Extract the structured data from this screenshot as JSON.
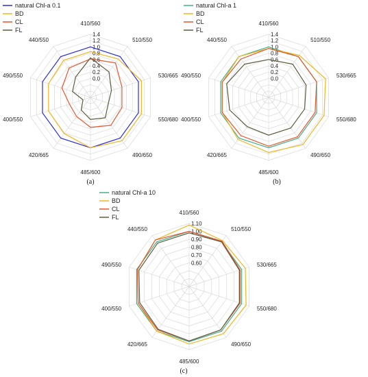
{
  "chart_data": [
    {
      "type": "radar",
      "panel_label": "(a)",
      "categories": [
        "410/560",
        "510/550",
        "530/665",
        "550/680",
        "490/650",
        "485/600",
        "420/665",
        "400/550",
        "490/550",
        "440/550"
      ],
      "ticks": [
        0.0,
        0.2,
        0.4,
        0.6,
        0.8,
        1.0,
        1.2,
        1.4
      ],
      "tick_labels": [
        "0.0",
        "0.2",
        "0.4",
        "0.6",
        "0.8",
        "1.0",
        "1.2",
        "1.4"
      ],
      "rlim": [
        -0.6,
        1.4
      ],
      "grid": true,
      "legend_position": "top-left",
      "series": [
        {
          "name": "natural Chl-a 0.1",
          "color": "#2b2bdb",
          "values": [
            1.0,
            1.0,
            1.0,
            1.0,
            1.0,
            1.0,
            1.0,
            1.0,
            1.0,
            1.0
          ]
        },
        {
          "name": "BD",
          "color": "#f2b51d",
          "values": [
            0.85,
            0.9,
            1.1,
            1.1,
            1.1,
            1.0,
            0.82,
            0.8,
            0.8,
            0.85
          ]
        },
        {
          "name": "CL",
          "color": "#e8532a",
          "values": [
            0.62,
            0.75,
            0.45,
            0.45,
            0.5,
            0.35,
            0.15,
            0.1,
            0.35,
            0.55
          ]
        },
        {
          "name": "FL",
          "color": "#5d5a3f",
          "values": [
            0.65,
            0.4,
            0.1,
            0.0,
            0.2,
            0.1,
            -0.1,
            -0.35,
            0.0,
            0.2
          ]
        }
      ]
    },
    {
      "type": "radar",
      "panel_label": "(b)",
      "categories": [
        "410/560",
        "510/550",
        "530/665",
        "550/680",
        "490/650",
        "485/600",
        "420/665",
        "400/550",
        "490/550",
        "440/550"
      ],
      "ticks": [
        0.0,
        0.2,
        0.4,
        0.6,
        0.8,
        1.0,
        1.2,
        1.4
      ],
      "tick_labels": [
        "0.0",
        "0.2",
        "0.4",
        "0.6",
        "0.8",
        "1.0",
        "1.2",
        "1.4"
      ],
      "rlim": [
        -0.6,
        1.4
      ],
      "grid": true,
      "legend_position": "top-left",
      "series": [
        {
          "name": "natural Chl-a 1",
          "color": "#3fb08e",
          "values": [
            1.0,
            1.0,
            1.0,
            1.0,
            1.0,
            1.0,
            1.0,
            1.0,
            1.0,
            1.0
          ]
        },
        {
          "name": "BD",
          "color": "#f2b51d",
          "values": [
            0.95,
            1.05,
            1.3,
            1.25,
            1.25,
            1.15,
            1.05,
            0.95,
            0.95,
            1.0
          ]
        },
        {
          "name": "CL",
          "color": "#e8532a",
          "values": [
            0.95,
            1.0,
            1.0,
            0.95,
            0.95,
            0.95,
            0.9,
            0.95,
            0.95,
            0.9
          ]
        },
        {
          "name": "FL",
          "color": "#5d5a3f",
          "values": [
            0.6,
            0.7,
            0.65,
            0.6,
            0.6,
            0.6,
            0.55,
            0.7,
            0.8,
            0.7
          ]
        }
      ]
    },
    {
      "type": "radar",
      "panel_label": "(c)",
      "categories": [
        "410/560",
        "510/550",
        "530/665",
        "550/680",
        "490/650",
        "485/600",
        "420/665",
        "400/550",
        "490/550",
        "440/550"
      ],
      "ticks": [
        0.6,
        0.7,
        0.8,
        0.9,
        1.0,
        1.1
      ],
      "tick_labels": [
        "0.60",
        "0.70",
        "0.80",
        "0.90",
        "1.00",
        "1.10"
      ],
      "rlim": [
        0.3,
        1.1
      ],
      "grid": true,
      "legend_position": "top-left",
      "series": [
        {
          "name": "natural Chl-a 10",
          "color": "#3fb08e",
          "values": [
            1.0,
            1.0,
            1.0,
            1.0,
            1.0,
            1.0,
            1.0,
            1.0,
            1.0,
            1.0
          ]
        },
        {
          "name": "BD",
          "color": "#f2b51d",
          "values": [
            1.08,
            1.02,
            1.05,
            1.06,
            1.04,
            1.03,
            1.0,
            0.98,
            0.99,
            1.03
          ]
        },
        {
          "name": "CL",
          "color": "#e8532a",
          "values": [
            1.0,
            1.01,
            0.98,
            0.98,
            0.98,
            0.99,
            0.98,
            0.98,
            0.99,
            1.03
          ]
        },
        {
          "name": "FL",
          "color": "#5d5a3f",
          "values": [
            0.98,
            1.0,
            0.97,
            0.97,
            0.98,
            0.99,
            0.97,
            0.96,
            0.97,
            0.98
          ]
        }
      ]
    }
  ]
}
